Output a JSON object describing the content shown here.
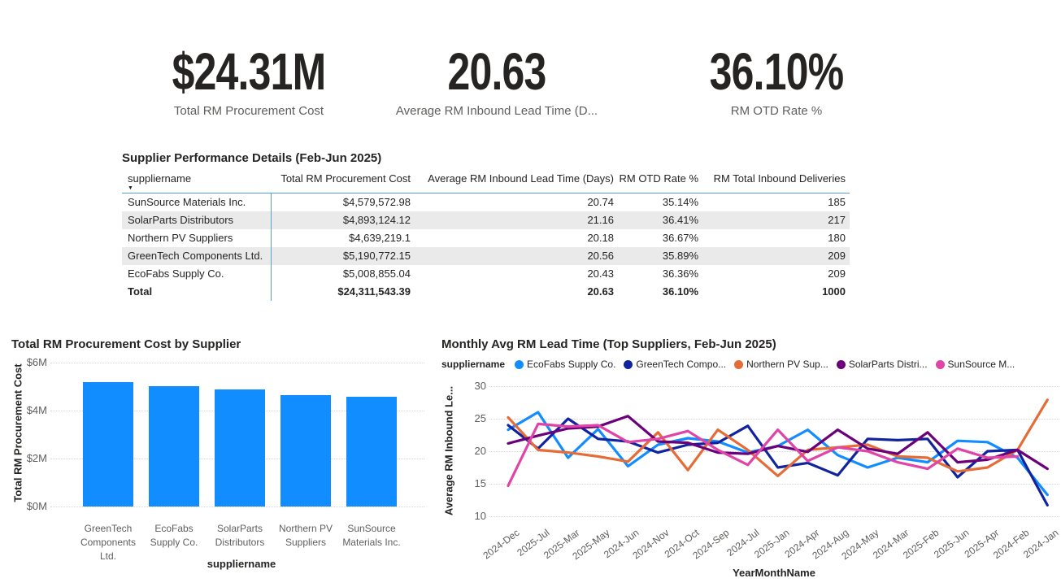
{
  "kpis": [
    {
      "value": "$24.31M",
      "label": "Total RM Procurement Cost"
    },
    {
      "value": "20.63",
      "label": "Average RM Inbound Lead Time (D..."
    },
    {
      "value": "36.10%",
      "label": "RM OTD Rate %"
    }
  ],
  "table": {
    "title": "Supplier Performance Details (Feb-Jun 2025)",
    "columns": [
      "suppliername",
      "Total RM Procurement Cost",
      "Average RM Inbound Lead Time (Days)",
      "RM OTD Rate %",
      "RM Total Inbound Deliveries"
    ],
    "sorted_column": "suppliername",
    "sort_direction": "descending",
    "rows": [
      [
        "SunSource Materials Inc.",
        "$4,579,572.98",
        "20.74",
        "35.14%",
        "185"
      ],
      [
        "SolarParts Distributors",
        "$4,893,124.12",
        "21.16",
        "36.41%",
        "217"
      ],
      [
        "Northern PV Suppliers",
        "$4,639,219.1",
        "20.18",
        "36.67%",
        "180"
      ],
      [
        "GreenTech Components Ltd.",
        "$5,190,772.15",
        "20.56",
        "35.89%",
        "209"
      ],
      [
        "EcoFabs Supply Co.",
        "$5,008,855.04",
        "20.43",
        "36.36%",
        "209"
      ]
    ],
    "total_row": [
      "Total",
      "$24,311,543.39",
      "20.63",
      "36.10%",
      "1000"
    ]
  },
  "chart_data": [
    {
      "type": "bar",
      "title": "Total RM Procurement Cost by Supplier",
      "xlabel": "suppliername",
      "ylabel": "Total RM Procurement Cost",
      "ylim": [
        0,
        6000000
      ],
      "yticks": [
        "$0M",
        "$2M",
        "$4M",
        "$6M"
      ],
      "grid": "dotted-horizontal",
      "bar_color": "#118DFF",
      "categories": [
        "GreenTech Components Ltd.",
        "EcoFabs Supply Co.",
        "SolarParts Distributors",
        "Northern PV Suppliers",
        "SunSource Materials Inc."
      ],
      "category_lines": [
        [
          "GreenTech",
          "Components",
          "Ltd."
        ],
        [
          "EcoFabs",
          "Supply Co."
        ],
        [
          "SolarParts",
          "Distributors"
        ],
        [
          "Northern PV",
          "Suppliers"
        ],
        [
          "SunSource",
          "Materials Inc."
        ]
      ],
      "values": [
        5190772.15,
        5008855.04,
        4893124.12,
        4639219.1,
        4579572.98
      ]
    },
    {
      "type": "line",
      "title": "Monthly Avg RM Lead Time (Top Suppliers, Feb-Jun 2025)",
      "legend_title": "suppliername",
      "legend_position": "top",
      "xlabel": "YearMonthName",
      "ylabel": "Average RM Inbound Le...",
      "ylim": [
        10,
        30
      ],
      "yticks": [
        10,
        15,
        20,
        25,
        30
      ],
      "grid": "dotted-horizontal",
      "categories": [
        "2024-Dec",
        "2025-Jul",
        "2025-Mar",
        "2025-May",
        "2024-Jun",
        "2024-Nov",
        "2024-Oct",
        "2024-Sep",
        "2024-Jul",
        "2025-Jan",
        "2024-Apr",
        "2024-Aug",
        "2024-May",
        "2024-Mar",
        "2025-Feb",
        "2025-Jun",
        "2025-Apr",
        "2024-Feb",
        "2024-Jan"
      ],
      "series": [
        {
          "name": "EcoFabs Supply Co.",
          "legend_label": "EcoFabs Supply Co.",
          "color": "#118DFF",
          "values": [
            23.3,
            26.0,
            19.0,
            23.4,
            17.7,
            21.0,
            22.0,
            21.5,
            19.8,
            20.8,
            23.3,
            19.4,
            17.5,
            19.0,
            18.3,
            21.6,
            21.4,
            19.0,
            13.3
          ]
        },
        {
          "name": "GreenTech Components Ltd.",
          "legend_label": "GreenTech Compo...",
          "color": "#12239E",
          "values": [
            24.0,
            20.4,
            25.0,
            21.9,
            21.5,
            19.8,
            21.0,
            21.3,
            23.9,
            17.5,
            18.2,
            16.3,
            21.9,
            21.7,
            21.9,
            16.0,
            20.0,
            20.2,
            11.7
          ]
        },
        {
          "name": "Northern PV Suppliers",
          "legend_label": "Northern PV Sup...",
          "color": "#E66C37",
          "values": [
            25.2,
            20.2,
            19.8,
            19.2,
            18.4,
            22.9,
            17.1,
            23.3,
            20.2,
            16.2,
            20.2,
            20.6,
            21.0,
            19.2,
            19.0,
            16.9,
            17.5,
            20.2,
            27.9
          ]
        },
        {
          "name": "SolarParts Distributors",
          "legend_label": "SolarParts Distri...",
          "color": "#6B007B",
          "values": [
            21.2,
            22.4,
            23.5,
            23.8,
            25.4,
            21.5,
            21.3,
            19.8,
            19.6,
            20.8,
            19.9,
            23.3,
            20.4,
            19.6,
            22.9,
            18.3,
            18.7,
            20.2,
            17.3
          ]
        },
        {
          "name": "SunSource Materials Inc.",
          "legend_label": "SunSource M...",
          "color": "#E044A7",
          "values": [
            14.7,
            24.2,
            23.8,
            24.0,
            21.4,
            21.9,
            23.1,
            20.2,
            17.9,
            23.3,
            18.5,
            20.6,
            20.0,
            18.3,
            17.3,
            20.4,
            19.0,
            19.2,
            null
          ]
        }
      ]
    }
  ]
}
